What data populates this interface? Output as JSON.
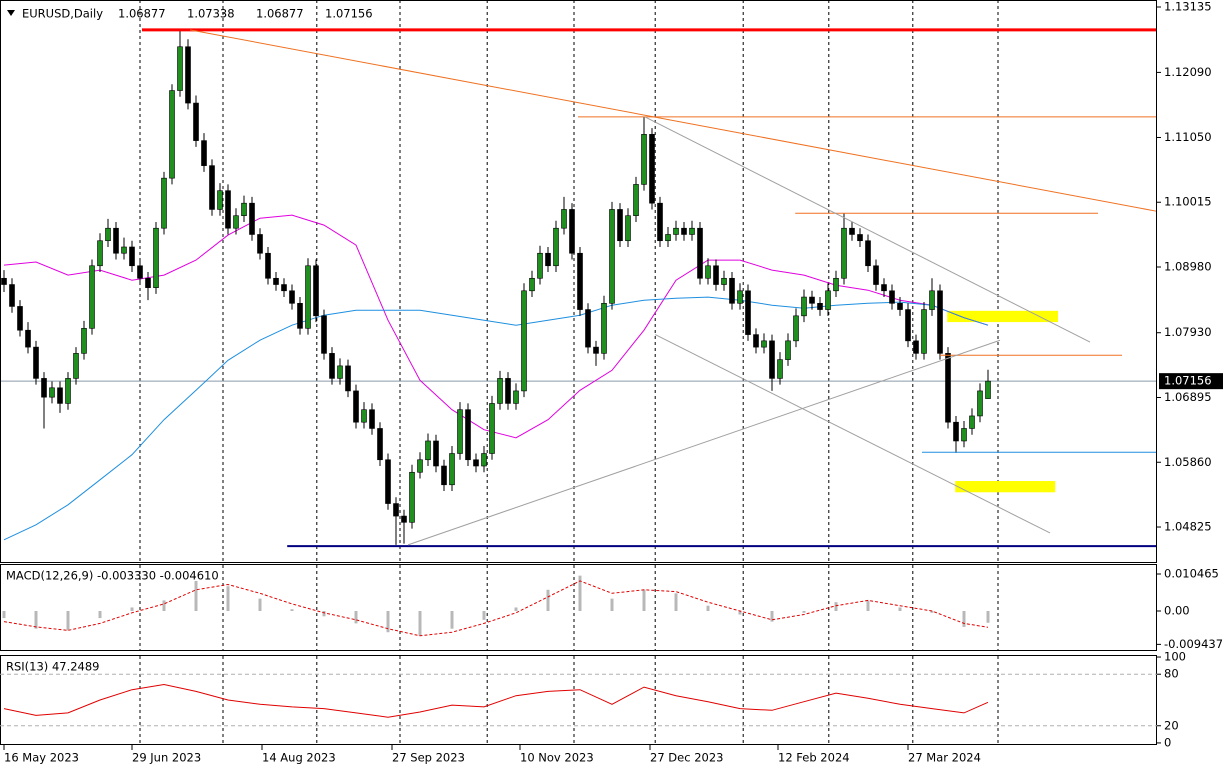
{
  "chart_data": {
    "type": "candlestick",
    "symbol": "EURUSD,Daily",
    "xlim": [
      -0.5,
      144.125
    ],
    "ylim": [
      1.0425,
      1.13247
    ],
    "yticks": [
      1.13135,
      {
        "value": 1.1209,
        "label": "1.12090"
      },
      {
        "value": 1.1105,
        "label": "1.11050"
      },
      1.10015,
      {
        "value": 1.0898,
        "label": "1.08980"
      },
      {
        "value": 1.0793,
        "label": "1.07930"
      },
      1.06895,
      {
        "value": 1.0586,
        "label": "1.05860"
      },
      1.04825
    ],
    "xticks": [
      {
        "value": 0,
        "label": "16 May 2023"
      },
      {
        "value": 16,
        "label": "29 Jun 2023"
      },
      {
        "value": 32.25,
        "label": "14 Aug 2023"
      },
      {
        "value": 48.5,
        "label": "27 Sep 2023"
      },
      {
        "value": 64.5,
        "label": "10 Nov 2023"
      },
      {
        "value": 80.75,
        "label": "27 Dec 2023"
      },
      {
        "value": 96.75,
        "label": "12 Feb 2024"
      },
      {
        "value": 113,
        "label": "27 Mar 2024"
      }
    ],
    "separators": [
      17,
      27.375,
      39.1,
      49.5,
      60.4,
      71.25,
      81.4,
      92.4,
      103.1,
      113.6,
      124.25
    ],
    "up_color": "#1f8f1f",
    "down_color": "#000000",
    "ohlc": [
      [
        1.088,
        1.0893,
        1.0858,
        1.087
      ],
      [
        1.087,
        1.088,
        1.0825,
        1.0835
      ],
      [
        1.0835,
        1.0845,
        1.0787,
        1.0797
      ],
      [
        1.0797,
        1.081,
        1.076,
        1.077
      ],
      [
        1.077,
        1.078,
        1.071,
        1.072
      ],
      [
        1.072,
        1.073,
        1.064,
        1.069
      ],
      [
        1.069,
        1.0715,
        1.068,
        1.0705
      ],
      [
        1.0705,
        1.0715,
        1.0665,
        1.068
      ],
      [
        1.068,
        1.073,
        1.067,
        1.072
      ],
      [
        1.072,
        1.077,
        1.071,
        1.076
      ],
      [
        1.076,
        1.0812,
        1.075,
        1.08
      ],
      [
        1.08,
        1.091,
        1.079,
        1.09
      ],
      [
        1.09,
        1.0952,
        1.089,
        1.094
      ],
      [
        1.094,
        1.0975,
        1.093,
        1.096
      ],
      [
        1.096,
        1.097,
        1.091,
        1.092
      ],
      [
        1.092,
        1.0945,
        1.091,
        1.093
      ],
      [
        1.093,
        1.094,
        1.089,
        1.09
      ],
      [
        1.09,
        1.091,
        1.087,
        1.088
      ],
      [
        1.088,
        1.089,
        1.0845,
        1.0865
      ],
      [
        1.0865,
        1.097,
        1.0855,
        1.096
      ],
      [
        1.096,
        1.105,
        1.095,
        1.104
      ],
      [
        1.104,
        1.119,
        1.103,
        1.118
      ],
      [
        1.118,
        1.1277,
        1.117,
        1.125
      ],
      [
        1.125,
        1.1262,
        1.115,
        1.116
      ],
      [
        1.116,
        1.1172,
        1.109,
        1.11
      ],
      [
        1.11,
        1.1112,
        1.105,
        1.106
      ],
      [
        1.106,
        1.107,
        1.098,
        1.099
      ],
      [
        1.099,
        1.1032,
        1.098,
        1.102
      ],
      [
        1.102,
        1.103,
        1.095,
        1.096
      ],
      [
        1.096,
        1.0992,
        1.095,
        1.098
      ],
      [
        1.098,
        1.1012,
        1.097,
        1.1
      ],
      [
        1.1,
        1.101,
        1.094,
        1.095
      ],
      [
        1.095,
        1.096,
        1.091,
        1.092
      ],
      [
        1.092,
        1.093,
        1.087,
        1.088
      ],
      [
        1.088,
        1.089,
        1.086,
        1.087
      ],
      [
        1.087,
        1.088,
        1.085,
        1.086
      ],
      [
        1.086,
        1.087,
        1.083,
        1.084
      ],
      [
        1.084,
        1.085,
        1.079,
        1.08
      ],
      [
        1.08,
        1.0912,
        1.079,
        1.09
      ],
      [
        1.09,
        1.091,
        1.081,
        1.082
      ],
      [
        1.082,
        1.083,
        1.075,
        1.076
      ],
      [
        1.076,
        1.077,
        1.071,
        1.072
      ],
      [
        1.072,
        1.0752,
        1.071,
        1.074
      ],
      [
        1.074,
        1.075,
        1.069,
        1.07
      ],
      [
        1.07,
        1.071,
        1.064,
        1.065
      ],
      [
        1.065,
        1.0682,
        1.064,
        1.067
      ],
      [
        1.067,
        1.068,
        1.063,
        1.064
      ],
      [
        1.064,
        1.065,
        1.058,
        1.059
      ],
      [
        1.059,
        1.06,
        1.051,
        1.052
      ],
      [
        1.052,
        1.053,
        1.0454,
        1.05
      ],
      [
        1.05,
        1.051,
        1.0456,
        1.049
      ],
      [
        1.049,
        1.0582,
        1.048,
        1.057
      ],
      [
        1.057,
        1.0602,
        1.056,
        1.059
      ],
      [
        1.059,
        1.0632,
        1.058,
        1.062
      ],
      [
        1.062,
        1.063,
        1.057,
        1.058
      ],
      [
        1.058,
        1.059,
        1.054,
        1.055
      ],
      [
        1.055,
        1.0612,
        1.054,
        1.06
      ],
      [
        1.06,
        1.0682,
        1.059,
        1.067
      ],
      [
        1.067,
        1.068,
        1.058,
        1.059
      ],
      [
        1.059,
        1.06,
        1.057,
        1.058
      ],
      [
        1.058,
        1.0612,
        1.057,
        1.06
      ],
      [
        1.06,
        1.0692,
        1.059,
        1.068
      ],
      [
        1.068,
        1.0732,
        1.067,
        1.072
      ],
      [
        1.072,
        1.073,
        1.067,
        1.068
      ],
      [
        1.068,
        1.0712,
        1.067,
        1.07
      ],
      [
        1.07,
        1.0872,
        1.069,
        1.086
      ],
      [
        1.086,
        1.0892,
        1.085,
        1.088
      ],
      [
        1.088,
        1.0932,
        1.087,
        1.092
      ],
      [
        1.092,
        1.093,
        1.089,
        1.09
      ],
      [
        1.09,
        1.0972,
        1.089,
        1.096
      ],
      [
        1.096,
        1.101,
        1.095,
        1.099
      ],
      [
        1.099,
        1.1,
        1.091,
        1.092
      ],
      [
        1.092,
        1.093,
        1.082,
        1.083
      ],
      [
        1.083,
        1.084,
        1.076,
        1.077
      ],
      [
        1.077,
        1.078,
        1.074,
        1.076
      ],
      [
        1.076,
        1.0852,
        1.075,
        1.084
      ],
      [
        1.084,
        1.1002,
        1.083,
        1.099
      ],
      [
        1.099,
        1.1,
        1.093,
        1.094
      ],
      [
        1.094,
        1.0992,
        1.093,
        1.098
      ],
      [
        1.098,
        1.1042,
        1.097,
        1.103
      ],
      [
        1.103,
        1.1138,
        1.102,
        1.111
      ],
      [
        1.111,
        1.112,
        1.099,
        1.1
      ],
      [
        1.1,
        1.101,
        1.093,
        1.094
      ],
      [
        1.094,
        1.0962,
        1.093,
        1.095
      ],
      [
        1.095,
        1.0972,
        1.094,
        1.096
      ],
      [
        1.096,
        1.097,
        1.094,
        1.095
      ],
      [
        1.095,
        1.0972,
        1.094,
        1.096
      ],
      [
        1.096,
        1.097,
        1.087,
        1.088
      ],
      [
        1.088,
        1.0912,
        1.087,
        1.09
      ],
      [
        1.09,
        1.091,
        1.086,
        1.087
      ],
      [
        1.087,
        1.0892,
        1.086,
        1.088
      ],
      [
        1.088,
        1.089,
        1.083,
        1.084
      ],
      [
        1.084,
        1.0872,
        1.083,
        1.086
      ],
      [
        1.086,
        1.087,
        1.078,
        1.079
      ],
      [
        1.079,
        1.08,
        1.076,
        1.077
      ],
      [
        1.077,
        1.0792,
        1.076,
        1.078
      ],
      [
        1.078,
        1.079,
        1.07,
        1.072
      ],
      [
        1.072,
        1.0762,
        1.071,
        1.075
      ],
      [
        1.075,
        1.0792,
        1.074,
        1.078
      ],
      [
        1.078,
        1.0832,
        1.077,
        1.082
      ],
      [
        1.082,
        1.0862,
        1.081,
        1.085
      ],
      [
        1.085,
        1.086,
        1.083,
        1.084
      ],
      [
        1.084,
        1.085,
        1.082,
        1.083
      ],
      [
        1.083,
        1.0872,
        1.082,
        1.086
      ],
      [
        1.086,
        1.0892,
        1.085,
        1.088
      ],
      [
        1.088,
        1.0984,
        1.087,
        1.096
      ],
      [
        1.096,
        1.097,
        1.094,
        1.095
      ],
      [
        1.095,
        1.096,
        1.093,
        1.094
      ],
      [
        1.094,
        1.095,
        1.089,
        1.09
      ],
      [
        1.09,
        1.091,
        1.086,
        1.087
      ],
      [
        1.087,
        1.088,
        1.085,
        1.086
      ],
      [
        1.086,
        1.087,
        1.083,
        1.084
      ],
      [
        1.084,
        1.085,
        1.082,
        1.083
      ],
      [
        1.083,
        1.084,
        1.077,
        1.078
      ],
      [
        1.078,
        1.079,
        1.075,
        1.076
      ],
      [
        1.076,
        1.0842,
        1.075,
        1.083
      ],
      [
        1.083,
        1.088,
        1.082,
        1.086
      ],
      [
        1.086,
        1.087,
        1.075,
        1.076
      ],
      [
        1.076,
        1.077,
        1.064,
        1.065
      ],
      [
        1.065,
        1.066,
        1.0601,
        1.062
      ],
      [
        1.062,
        1.0652,
        1.061,
        1.064
      ],
      [
        1.064,
        1.0672,
        1.063,
        1.066
      ],
      [
        1.066,
        1.0712,
        1.065,
        1.07
      ],
      [
        1.06877,
        1.07338,
        1.06877,
        1.07156
      ]
    ],
    "sample_index": [
      0,
      4,
      8,
      12,
      16,
      20,
      24,
      28,
      32,
      36,
      40,
      44,
      48,
      52,
      56,
      60,
      64,
      68,
      72,
      76,
      80,
      84,
      88,
      92,
      96,
      100,
      104,
      108,
      112,
      116,
      120,
      123
    ],
    "series": [
      {
        "color": "#e000e0",
        "values": [
          1.0901,
          1.0906,
          1.0885,
          1.0893,
          1.0877,
          1.0885,
          1.0909,
          1.0949,
          1.0976,
          1.0981,
          1.0965,
          1.0933,
          1.0813,
          1.0717,
          1.067,
          1.0638,
          1.0625,
          1.0654,
          1.0701,
          1.0733,
          1.0797,
          1.0877,
          1.0909,
          1.0909,
          1.0893,
          1.0885,
          1.0869,
          1.0861,
          1.0845,
          1.0837,
          1.0817,
          1.0805
        ]
      },
      {
        "color": "#1e8fe0",
        "values": [
          1.0462,
          1.0486,
          1.0518,
          1.0558,
          1.0598,
          1.0654,
          1.0701,
          1.0749,
          1.0781,
          1.0805,
          1.0821,
          1.0829,
          1.0829,
          1.0829,
          1.0821,
          1.0813,
          1.0805,
          1.0813,
          1.0821,
          1.0837,
          1.0845,
          1.0848,
          1.085,
          1.0845,
          1.0837,
          1.0832,
          1.0837,
          1.084,
          1.0842,
          1.0837,
          1.0817,
          1.0805
        ]
      }
    ],
    "levels": [
      {
        "price": 1.1277,
        "from": 17.25,
        "to": 144.125,
        "color": "#ff0000",
        "width": 3
      },
      {
        "price": 1.1138,
        "from": 71.75,
        "to": 144.125,
        "color": "#f07020",
        "width": 1
      },
      {
        "price": 1.0984,
        "from": 98.9,
        "to": 136.75,
        "color": "#f07020",
        "width": 1
      },
      {
        "price": 1.0757,
        "from": 117,
        "to": 139.75,
        "color": "#f07020",
        "width": 1
      },
      {
        "price": 1.0602,
        "from": 114.75,
        "to": 144.125,
        "color": "#1e8fe0",
        "width": 1
      },
      {
        "price": 1.0452,
        "from": 35.4,
        "to": 144.125,
        "color": "#000080",
        "width": 2
      }
    ],
    "trendlines": [
      {
        "points": [
          [
            23.25,
            1.1277
          ],
          [
            144.125,
            1.0987
          ]
        ],
        "color": "#f07020"
      },
      {
        "points": [
          [
            80.1,
            1.1138
          ],
          [
            135.75,
            1.0778
          ]
        ],
        "color": "#a0a0a0"
      },
      {
        "points": [
          [
            81.4,
            1.079
          ],
          [
            130.75,
            1.0473
          ]
        ],
        "color": "#a0a0a0"
      },
      {
        "points": [
          [
            50.5,
            1.0454
          ],
          [
            124.5,
            1.0781
          ]
        ],
        "color": "#a0a0a0"
      }
    ],
    "zones": [
      {
        "from": 117.9,
        "to": 131.75,
        "top": 1.0828,
        "bottom": 1.081,
        "color": "#ffff00"
      },
      {
        "from": 118.9,
        "to": 131.4,
        "top": 1.0556,
        "bottom": 1.0538,
        "color": "#ffff00"
      }
    ],
    "indicators": [
      {
        "type": "macd",
        "title": "MACD(12,26,9) -0.003330 -0.004610",
        "ylim": [
          -0.01103,
          0.01301
        ],
        "yticks": [
          0.010465,
          {
            "value": 0,
            "label": "0.00"
          },
          -0.009437
        ],
        "series": [
          {
            "color": "#b8b8b8",
            "style": "histogram",
            "values": [
              -0.002,
              -0.005,
              -0.0055,
              -0.002,
              0.001,
              0.003,
              0.0085,
              0.007,
              0.0035,
              0.0005,
              -0.0015,
              -0.0035,
              -0.006,
              -0.007,
              -0.005,
              -0.0025,
              0.001,
              0.006,
              0.01,
              0.0035,
              0.006,
              0.005,
              0.0015,
              -0.001,
              -0.003,
              -0.0005,
              0.0025,
              0.003,
              0.001,
              -0.0005,
              -0.0045,
              -0.00333
            ]
          },
          {
            "color": "#e00000",
            "style": "dashed",
            "values": [
              -0.003,
              -0.0045,
              -0.0055,
              -0.0035,
              -0.0005,
              0.002,
              0.006,
              0.0075,
              0.005,
              0.002,
              -0.0005,
              -0.0025,
              -0.005,
              -0.007,
              -0.006,
              -0.0035,
              -0.0005,
              0.004,
              0.0085,
              0.005,
              0.006,
              0.0055,
              0.0025,
              0.0,
              -0.0025,
              -0.001,
              0.0015,
              0.003,
              0.0015,
              0.0,
              -0.0035,
              -0.00461
            ]
          }
        ]
      },
      {
        "type": "rsi",
        "title": "RSI(13) 47.2489",
        "ylim": [
          -2.4,
          101.2
        ],
        "yticks": [
          100,
          80,
          20,
          0
        ],
        "levels": [
          80,
          20
        ],
        "series": [
          {
            "color": "#e00000",
            "style": "line",
            "values": [
              40,
              32,
              35,
              50,
              62,
              68,
              60,
              50,
              45,
              42,
              40,
              35,
              30,
              36,
              44,
              42,
              55,
              60,
              62,
              45,
              65,
              55,
              48,
              40,
              38,
              48,
              58,
              52,
              45,
              40,
              35,
              47.2489
            ]
          }
        ]
      }
    ]
  }
}
